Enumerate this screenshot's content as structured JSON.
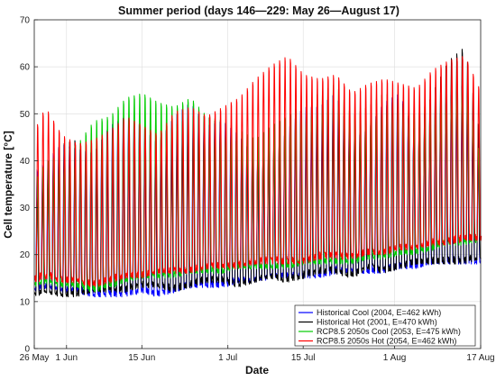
{
  "chart_data": {
    "type": "line",
    "title": "Summer period (days 146—229: May 26—August 17)",
    "xlabel": "Date",
    "ylabel": "Cell temperature [°C]",
    "xlim": [
      "2021-05-26",
      "2021-08-17"
    ],
    "ylim": [
      0,
      70
    ],
    "yticks": [
      0,
      10,
      20,
      30,
      40,
      50,
      60,
      70
    ],
    "xticks": [
      {
        "date": "2021-05-26",
        "label": "26 May"
      },
      {
        "date": "2021-06-01",
        "label": "1 Jun"
      },
      {
        "date": "2021-06-15",
        "label": "15 Jun"
      },
      {
        "date": "2021-07-01",
        "label": "1 Jul"
      },
      {
        "date": "2021-07-15",
        "label": "15 Jul"
      },
      {
        "date": "2021-08-01",
        "label": "1 Aug"
      },
      {
        "date": "2021-08-17",
        "label": "17 Aug"
      }
    ],
    "grid": true,
    "legend_position": "bottom-right",
    "series": [
      {
        "name": "Historical Cool (2004, E=462 kWh)",
        "color": "#0000ff",
        "x": [
          "2021-05-26",
          "2021-05-28",
          "2021-05-31",
          "2021-06-03",
          "2021-06-06",
          "2021-06-09",
          "2021-06-12",
          "2021-06-15",
          "2021-06-18",
          "2021-06-21",
          "2021-06-24",
          "2021-06-27",
          "2021-06-30",
          "2021-07-03",
          "2021-07-06",
          "2021-07-09",
          "2021-07-12",
          "2021-07-15",
          "2021-07-18",
          "2021-07-21",
          "2021-07-24",
          "2021-07-27",
          "2021-07-30",
          "2021-08-02",
          "2021-08-05",
          "2021-08-08",
          "2021-08-11",
          "2021-08-14",
          "2021-08-17"
        ],
        "min": [
          12,
          13,
          12,
          12,
          11,
          11,
          11,
          12,
          11,
          12,
          13,
          13,
          13,
          14,
          14,
          15,
          15,
          15,
          15,
          16,
          16,
          16,
          16,
          17,
          17,
          18,
          18,
          18,
          18
        ],
        "max": [
          38,
          40,
          44,
          43,
          42,
          48,
          50,
          48,
          44,
          50,
          53,
          48,
          49,
          46,
          41,
          40,
          47,
          52,
          52,
          55,
          45,
          47,
          53,
          55,
          44,
          47,
          54,
          57,
          40
        ]
      },
      {
        "name": "Historical Hot (2001, E=470 kWh)",
        "color": "#000000",
        "x": [
          "2021-05-26",
          "2021-05-28",
          "2021-05-31",
          "2021-06-03",
          "2021-06-06",
          "2021-06-09",
          "2021-06-12",
          "2021-06-15",
          "2021-06-18",
          "2021-06-21",
          "2021-06-24",
          "2021-06-27",
          "2021-06-30",
          "2021-07-03",
          "2021-07-06",
          "2021-07-09",
          "2021-07-12",
          "2021-07-15",
          "2021-07-18",
          "2021-07-21",
          "2021-07-24",
          "2021-07-27",
          "2021-07-30",
          "2021-08-02",
          "2021-08-05",
          "2021-08-08",
          "2021-08-11",
          "2021-08-14",
          "2021-08-17"
        ],
        "min": [
          11,
          12,
          11,
          11,
          12,
          12,
          12,
          13,
          13,
          12,
          13,
          14,
          14,
          13,
          14,
          15,
          14,
          15,
          16,
          16,
          15,
          17,
          16,
          17,
          18,
          18,
          18,
          18,
          19
        ],
        "max": [
          35,
          38,
          44,
          45,
          40,
          46,
          48,
          47,
          45,
          48,
          50,
          50,
          48,
          44,
          42,
          45,
          48,
          50,
          50,
          52,
          44,
          48,
          52,
          54,
          46,
          55,
          62,
          65,
          45
        ]
      },
      {
        "name": "RCP8.5 2050s Cool (2053, E=475 kWh)",
        "color": "#00cc00",
        "x": [
          "2021-05-26",
          "2021-05-28",
          "2021-05-31",
          "2021-06-03",
          "2021-06-06",
          "2021-06-09",
          "2021-06-12",
          "2021-06-15",
          "2021-06-18",
          "2021-06-21",
          "2021-06-24",
          "2021-06-27",
          "2021-06-30",
          "2021-07-03",
          "2021-07-06",
          "2021-07-09",
          "2021-07-12",
          "2021-07-15",
          "2021-07-18",
          "2021-07-21",
          "2021-07-24",
          "2021-07-27",
          "2021-07-30",
          "2021-08-02",
          "2021-08-05",
          "2021-08-08",
          "2021-08-11",
          "2021-08-14",
          "2021-08-17"
        ],
        "min": [
          13,
          14,
          13,
          13,
          12,
          13,
          14,
          15,
          15,
          15,
          16,
          16,
          16,
          17,
          17,
          17,
          17,
          18,
          18,
          18,
          18,
          19,
          19,
          20,
          20,
          21,
          22,
          22,
          23
        ],
        "max": [
          36,
          40,
          42,
          44,
          49,
          50,
          54,
          55,
          53,
          52,
          54,
          50,
          49,
          47,
          45,
          48,
          50,
          53,
          55,
          57,
          50,
          52,
          55,
          53,
          50,
          54,
          56,
          58,
          40
        ]
      },
      {
        "name": "RCP8.5 2050s Hot (2054, E=462 kWh)",
        "color": "#ff0000",
        "x": [
          "2021-05-26",
          "2021-05-28",
          "2021-05-31",
          "2021-06-03",
          "2021-06-06",
          "2021-06-09",
          "2021-06-12",
          "2021-06-15",
          "2021-06-18",
          "2021-06-21",
          "2021-06-24",
          "2021-06-27",
          "2021-06-30",
          "2021-07-03",
          "2021-07-06",
          "2021-07-09",
          "2021-07-12",
          "2021-07-15",
          "2021-07-18",
          "2021-07-21",
          "2021-07-24",
          "2021-07-27",
          "2021-07-30",
          "2021-08-02",
          "2021-08-05",
          "2021-08-08",
          "2021-08-11",
          "2021-08-14",
          "2021-08-17"
        ],
        "min": [
          14,
          15,
          14,
          14,
          13,
          14,
          15,
          15,
          16,
          16,
          16,
          17,
          17,
          17,
          18,
          18,
          18,
          18,
          19,
          19,
          19,
          20,
          20,
          21,
          21,
          22,
          22,
          23,
          23
        ],
        "max": [
          47,
          52,
          46,
          44,
          45,
          47,
          50,
          48,
          46,
          51,
          52,
          50,
          52,
          54,
          58,
          61,
          63,
          59,
          58,
          59,
          55,
          57,
          58,
          57,
          56,
          60,
          62,
          63,
          55
        ]
      }
    ]
  }
}
